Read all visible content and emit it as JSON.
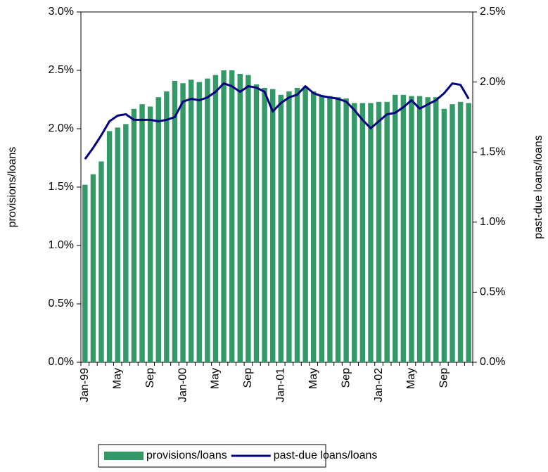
{
  "chart_data": {
    "type": "bar_line",
    "categories": [
      "Jan-99",
      null,
      null,
      null,
      "May",
      null,
      null,
      null,
      "Sep",
      null,
      null,
      null,
      "Jan-00",
      null,
      null,
      null,
      "May",
      null,
      null,
      null,
      "Sep",
      null,
      null,
      null,
      "Jan-01",
      null,
      null,
      null,
      "May",
      null,
      null,
      null,
      "Sep",
      null,
      null,
      null,
      "Jan-02",
      null,
      null,
      null,
      "May",
      null,
      null,
      null,
      "Sep",
      null,
      null,
      null
    ],
    "series": [
      {
        "name": "provisions/loans",
        "type": "bar",
        "color": "#339966",
        "axis": "y",
        "values": [
          1.52,
          1.61,
          1.72,
          1.98,
          2.01,
          2.04,
          2.17,
          2.21,
          2.19,
          2.27,
          2.32,
          2.41,
          2.39,
          2.42,
          2.4,
          2.43,
          2.46,
          2.5,
          2.5,
          2.47,
          2.46,
          2.38,
          2.35,
          2.34,
          2.29,
          2.32,
          2.35,
          2.36,
          2.32,
          2.28,
          2.28,
          2.27,
          2.26,
          2.22,
          2.22,
          2.22,
          2.23,
          2.23,
          2.29,
          2.29,
          2.28,
          2.28,
          2.27,
          2.27,
          2.17,
          2.21,
          2.23,
          2.22
        ]
      },
      {
        "name": "past-due loans/loans",
        "type": "line",
        "color": "#000080",
        "axis": "y2",
        "values": [
          1.45,
          1.53,
          1.62,
          1.72,
          1.76,
          1.77,
          1.73,
          1.73,
          1.73,
          1.72,
          1.73,
          1.75,
          1.86,
          1.88,
          1.87,
          1.89,
          1.93,
          1.99,
          1.97,
          1.93,
          1.97,
          1.96,
          1.93,
          1.79,
          1.85,
          1.89,
          1.91,
          1.97,
          1.92,
          1.9,
          1.89,
          1.88,
          1.86,
          1.8,
          1.73,
          1.67,
          1.72,
          1.77,
          1.78,
          1.82,
          1.87,
          1.81,
          1.84,
          1.87,
          1.92,
          1.99,
          1.98,
          1.88
        ]
      }
    ],
    "ylabel": "provisions/loans",
    "y2label": "past-due loans/loans",
    "ylim": [
      0,
      3
    ],
    "yticks": [
      {
        "value": 0,
        "label": "0.0%"
      },
      {
        "value": 0.5,
        "label": "0.5%"
      },
      {
        "value": 1,
        "label": "1.0%"
      },
      {
        "value": 1.5,
        "label": "1.5%"
      },
      {
        "value": 2,
        "label": "2.0%"
      },
      {
        "value": 2.5,
        "label": "2.5%"
      },
      {
        "value": 3,
        "label": "3.0%"
      }
    ],
    "y2lim": [
      0,
      2.5
    ],
    "y2ticks": [
      {
        "value": 0,
        "label": "0.0%"
      },
      {
        "value": 0.5,
        "label": "0.5%"
      },
      {
        "value": 1,
        "label": "1.0%"
      },
      {
        "value": 1.5,
        "label": "1.5%"
      },
      {
        "value": 2,
        "label": "2.0%"
      },
      {
        "value": 2.5,
        "label": "2.5%"
      }
    ],
    "legend": "bottom"
  }
}
